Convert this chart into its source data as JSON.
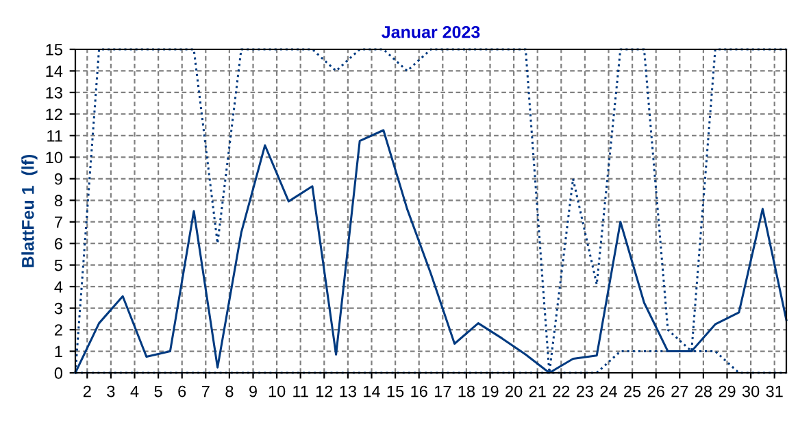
{
  "chart_data": {
    "type": "line",
    "title": "Januar 2023",
    "ylabel": "BlattFeu 1  (lf)",
    "x": [
      1.5,
      2.5,
      3.5,
      4.5,
      5.5,
      6.5,
      7.5,
      8.5,
      9.5,
      10.5,
      11.5,
      12.5,
      13.5,
      14.5,
      15.5,
      16.5,
      17.5,
      18.5,
      19.5,
      20.5,
      21.5,
      22.5,
      23.5,
      24.5,
      25.5,
      26.5,
      27.5,
      28.5,
      29.5,
      30.5,
      31.5
    ],
    "series": [
      {
        "color": "#003a80",
        "line_style": "solid",
        "values": [
          0,
          2.3,
          3.55,
          0.75,
          1.0,
          7.5,
          0.25,
          6.5,
          10.55,
          7.95,
          8.65,
          0.85,
          10.75,
          11.25,
          7.6,
          4.6,
          1.35,
          2.3,
          1.6,
          0.85,
          0,
          0.65,
          0.8,
          7.0,
          3.25,
          1.0,
          1.0,
          2.25,
          2.8,
          7.6,
          2.45
        ]
      },
      {
        "color": "#003a80",
        "line_style": "dotted",
        "values": [
          0,
          15,
          15,
          15,
          15,
          15,
          6.0,
          15,
          15,
          15,
          15,
          14.0,
          15,
          15,
          14.0,
          15,
          15,
          15,
          15,
          15,
          0,
          9.0,
          4.1,
          15,
          15,
          2.0,
          1.0,
          15,
          15,
          15,
          15
        ]
      },
      {
        "color": "#003a80",
        "line_style": "dotted",
        "values": [
          0,
          0,
          0,
          0,
          0,
          0,
          0,
          0,
          0,
          0,
          0,
          0,
          0,
          0,
          0,
          0,
          0,
          0,
          0,
          0,
          0,
          0,
          0,
          1.0,
          1.0,
          1.0,
          1.0,
          1.0,
          0,
          0,
          0
        ]
      }
    ],
    "xlim": [
      1.5,
      31.5
    ],
    "xticks": [
      2,
      3,
      4,
      5,
      6,
      7,
      8,
      9,
      10,
      11,
      12,
      13,
      14,
      15,
      16,
      17,
      18,
      19,
      20,
      21,
      22,
      23,
      24,
      25,
      26,
      27,
      28,
      29,
      30,
      31
    ],
    "ylim": [
      0,
      15
    ],
    "yticks": [
      0,
      1,
      2,
      3,
      4,
      5,
      6,
      7,
      8,
      9,
      10,
      11,
      12,
      13,
      14,
      15
    ],
    "grid": true,
    "marker": "none"
  }
}
